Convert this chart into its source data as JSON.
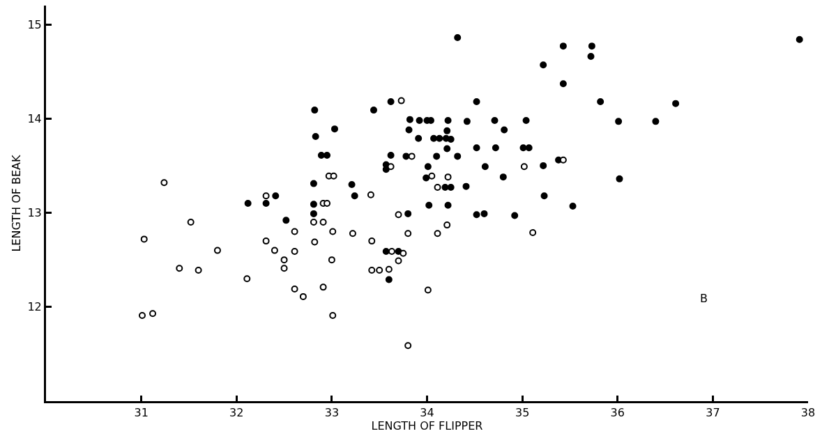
{
  "chart_data": {
    "type": "scatter",
    "xlabel": "LENGTH OF FLIPPER",
    "ylabel": "LENGTH OF BEAK",
    "xlim": [
      30,
      38
    ],
    "xticks": [
      31,
      32,
      33,
      34,
      35,
      36,
      37,
      38
    ],
    "ylim": [
      11,
      15.2
    ],
    "yticks": [
      12,
      13,
      14,
      15
    ],
    "marker": "circle",
    "annotations": [
      "B"
    ],
    "series": [
      {
        "color": "#000000",
        "x": [
          32.12,
          32.31,
          32.41,
          32.52,
          34.32,
          35.22,
          33.62,
          34.52,
          32.82,
          33.44,
          33.82,
          33.92,
          34.0,
          34.04,
          34.22,
          34.42,
          34.71,
          35.04,
          33.03,
          33.81,
          34.21,
          34.81,
          32.83,
          33.91,
          34.07,
          34.13,
          34.2,
          34.25,
          34.21,
          34.52,
          34.72,
          35.01,
          35.07,
          32.89,
          32.95,
          33.62,
          33.78,
          34.1,
          34.32,
          33.57,
          33.57,
          34.01,
          34.61,
          35.22,
          33.99,
          34.8,
          32.81,
          33.21,
          34.19,
          34.25,
          34.41,
          33.24,
          35.23,
          32.81,
          34.02,
          34.22,
          32.81,
          33.8,
          34.52,
          34.6,
          34.92,
          37.91,
          35.43,
          35.73,
          35.72,
          35.43,
          35.82,
          36.61,
          36.01,
          36.4,
          35.38,
          36.02,
          35.53,
          33.57,
          33.7,
          33.6
        ],
        "values": [
          13.1,
          13.1,
          13.18,
          12.92,
          14.86,
          14.57,
          14.18,
          14.18,
          14.09,
          14.09,
          13.99,
          13.98,
          13.98,
          13.98,
          13.98,
          13.97,
          13.98,
          13.98,
          13.89,
          13.88,
          13.87,
          13.88,
          13.81,
          13.79,
          13.79,
          13.79,
          13.79,
          13.78,
          13.68,
          13.69,
          13.69,
          13.69,
          13.69,
          13.61,
          13.61,
          13.61,
          13.6,
          13.6,
          13.6,
          13.51,
          13.46,
          13.49,
          13.49,
          13.5,
          13.37,
          13.38,
          13.31,
          13.3,
          13.27,
          13.27,
          13.28,
          13.18,
          13.18,
          13.09,
          13.08,
          13.08,
          12.99,
          12.99,
          12.98,
          12.99,
          12.97,
          14.84,
          14.77,
          14.77,
          14.66,
          14.37,
          14.18,
          14.16,
          13.97,
          13.97,
          13.56,
          13.36,
          13.07,
          12.59,
          12.59,
          12.29
        ]
      },
      {
        "color": "#ffffff",
        "x": [
          31.24,
          31.52,
          32.31,
          31.03,
          32.61,
          32.31,
          32.4,
          32.61,
          31.8,
          31.4,
          31.6,
          32.5,
          32.5,
          32.11,
          32.61,
          31.01,
          31.12,
          33.73,
          33.84,
          33.62,
          35.02,
          32.97,
          33.02,
          34.05,
          34.22,
          34.11,
          33.41,
          32.91,
          32.95,
          33.7,
          32.81,
          32.91,
          34.21,
          33.01,
          33.22,
          33.8,
          34.11,
          35.11,
          32.82,
          33.42,
          33.63,
          33.75,
          33.0,
          33.7,
          33.42,
          33.5,
          33.6,
          32.7,
          32.91,
          34.01,
          33.01,
          33.8,
          35.43
        ],
        "values": [
          13.32,
          12.9,
          13.18,
          12.72,
          12.8,
          12.7,
          12.6,
          12.59,
          12.6,
          12.41,
          12.39,
          12.5,
          12.41,
          12.3,
          12.19,
          11.91,
          11.93,
          14.19,
          13.6,
          13.49,
          13.49,
          13.39,
          13.39,
          13.39,
          13.38,
          13.27,
          13.19,
          13.1,
          13.1,
          12.98,
          12.9,
          12.9,
          12.87,
          12.8,
          12.78,
          12.78,
          12.78,
          12.79,
          12.69,
          12.7,
          12.59,
          12.57,
          12.5,
          12.49,
          12.39,
          12.39,
          12.4,
          12.11,
          12.21,
          12.18,
          11.91,
          11.59,
          13.56
        ]
      }
    ]
  }
}
